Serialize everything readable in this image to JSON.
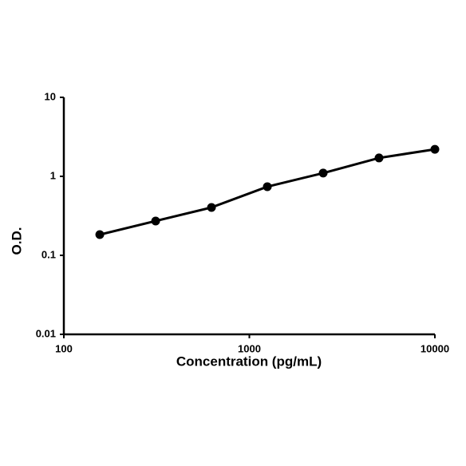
{
  "chart_data": {
    "type": "line",
    "x_label": "Concentration (pg/mL)",
    "y_label": "O.D.",
    "x": [
      156.25,
      312.5,
      625,
      1250,
      2500,
      5000,
      10000
    ],
    "series": [
      {
        "color": "#000000",
        "values": [
          0.183,
          0.272,
          0.404,
          0.74,
          1.1,
          1.71,
          2.2
        ]
      }
    ],
    "xlim": [
      100,
      10000
    ],
    "xticks": [
      100,
      1000,
      10000
    ],
    "ylim": [
      0.01,
      10
    ],
    "yticks": [
      0.01,
      0.1,
      1,
      10
    ],
    "xscale": "log",
    "yscale": "log",
    "grid": false
  }
}
